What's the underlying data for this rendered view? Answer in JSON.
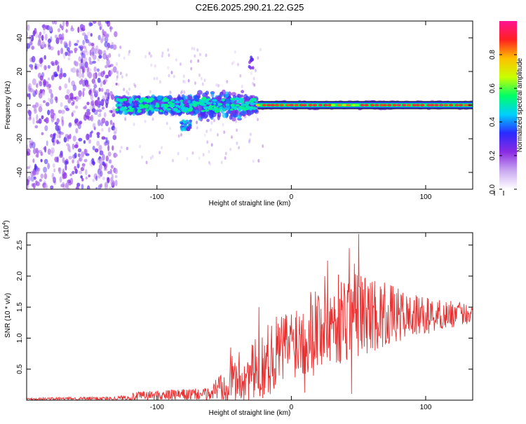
{
  "title": "C2E6.2025.290.21.22.G25",
  "chart_data": [
    {
      "type": "heatmap",
      "xlabel": "Height of straight line (km)",
      "ylabel": "Frequency (Hz)",
      "xlim": [
        -197,
        135
      ],
      "ylim": [
        -50,
        50
      ],
      "xticks": [
        -100,
        0,
        100
      ],
      "yticks": [
        -40,
        -20,
        0,
        20,
        40
      ],
      "colorbar": {
        "label": "Normalized spectral amplitude",
        "range": [
          0.0,
          1.0
        ],
        "ticks": [
          "0.0",
          "0.2",
          "0.4",
          "0.6",
          "0.8"
        ],
        "colors": [
          "#ffffff",
          "#c9a8f0",
          "#8a2be2",
          "#2a2aff",
          "#00cfff",
          "#00ff66",
          "#c8ff00",
          "#ffc000",
          "#ff2020",
          "#ff1493"
        ]
      },
      "features": {
        "scatter_region_x": [
          -197,
          -130
        ],
        "main_band_x": [
          -130,
          -25
        ],
        "steady_line_x": [
          -25,
          135
        ],
        "steady_line_freq": 0,
        "dip": {
          "x": [
            -82,
            -75
          ],
          "freq": -12
        },
        "spike": {
          "x": -30,
          "freq": 25
        }
      }
    },
    {
      "type": "line",
      "xlabel": "Height of straight line (km)",
      "ylabel": "SNR (10 * v/v)",
      "multiplier": "(x10",
      "multiplier_exp": "4",
      "multiplier_close": ")",
      "xlim": [
        -197,
        135
      ],
      "ylim": [
        0,
        2.7
      ],
      "xticks": [
        -100,
        0,
        100
      ],
      "yticks": [
        "0.5",
        "1.0",
        "1.5",
        "2.0",
        "2.5"
      ],
      "color": "#e83030",
      "envelope": [
        {
          "x": -197,
          "mean": 0.02,
          "amp": 0.02
        },
        {
          "x": -130,
          "mean": 0.03,
          "amp": 0.03
        },
        {
          "x": -110,
          "mean": 0.07,
          "amp": 0.08
        },
        {
          "x": -60,
          "mean": 0.1,
          "amp": 0.1
        },
        {
          "x": -50,
          "mean": 0.3,
          "amp": 0.35
        },
        {
          "x": -30,
          "mean": 0.4,
          "amp": 0.5
        },
        {
          "x": -15,
          "mean": 0.7,
          "amp": 0.6
        },
        {
          "x": 0,
          "mean": 0.95,
          "amp": 0.6
        },
        {
          "x": 20,
          "mean": 1.2,
          "amp": 0.8
        },
        {
          "x": 50,
          "mean": 1.4,
          "amp": 0.7
        },
        {
          "x": 90,
          "mean": 1.35,
          "amp": 0.35
        },
        {
          "x": 135,
          "mean": 1.4,
          "amp": 0.15
        }
      ],
      "peaks": [
        {
          "x": 50,
          "y": 2.68
        },
        {
          "x": 43,
          "y": 2.45
        },
        {
          "x": 27,
          "y": 2.25
        },
        {
          "x": 47,
          "y": 2.2
        },
        {
          "x": -24,
          "y": 1.5
        },
        {
          "x": -45,
          "y": 0.85
        }
      ],
      "dips": [
        {
          "x": 10,
          "y": 0.12
        },
        {
          "x": 45,
          "y": 0.1
        }
      ]
    }
  ]
}
